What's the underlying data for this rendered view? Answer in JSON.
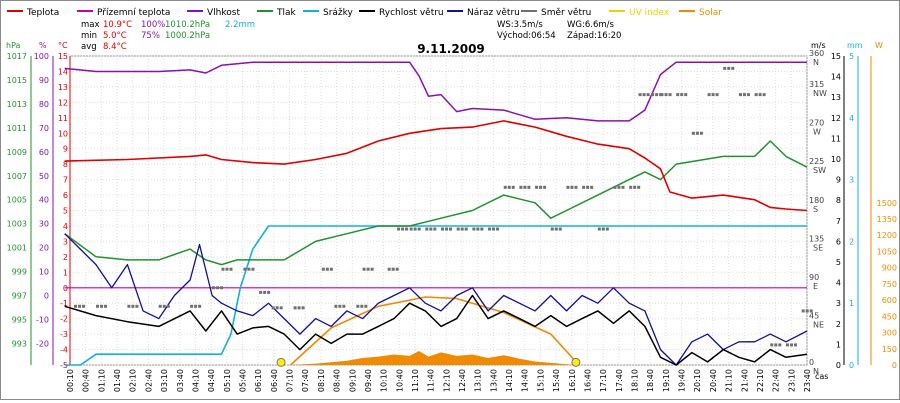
{
  "chart_data": {
    "type": "line",
    "title": "9.11.2009",
    "legend": [
      {
        "key": "teplota",
        "label": "Teplota",
        "color": "#e00000"
      },
      {
        "key": "rosny_bod",
        "label": "Přízemní teplota",
        "color": "#c000c0"
      },
      {
        "key": "vlhkost",
        "label": "Vlhkost",
        "color": "#8a10b0"
      },
      {
        "key": "tlak",
        "label": "Tlak",
        "color": "#20922e"
      },
      {
        "key": "srazky",
        "label": "Srážky",
        "color": "#12b0e0"
      },
      {
        "key": "rychlost",
        "label": "Rychlost větru",
        "color": "#000000"
      },
      {
        "key": "naraz",
        "label": "Náraz větru",
        "color": "#10109a"
      },
      {
        "key": "smer",
        "label": "Směr větru",
        "color": "#707070"
      },
      {
        "key": "uv",
        "label": "UV index",
        "color": "#f0d000"
      },
      {
        "key": "solar",
        "label": "Solar",
        "color": "#f08a00"
      }
    ],
    "stats": {
      "max_label": "max",
      "max_temp": "10.9°C",
      "max_hum": "100%",
      "max_press": "1010.2hPa",
      "rain": "2.2mm",
      "min_label": "min",
      "min_temp": "5.0°C",
      "min_hum": "75%",
      "min_press": "1000.2hPa",
      "avg_label": "avg",
      "avg_temp": "8.4°C"
    },
    "info": {
      "ws": "WS:3.5m/s",
      "wg": "WG:6.6m/s",
      "sunrise": "Východ:06:54",
      "sunset": "Západ:16:20"
    },
    "axis_units": {
      "hpa": "hPa",
      "pct": "%",
      "temp": "°C",
      "ms": "m/s",
      "mm": "mm",
      "w": "W",
      "cas": "čas"
    },
    "axes": {
      "hpa_ticks": [
        "1017",
        "1015",
        "1013",
        "1011",
        "1009",
        "1007",
        "1005",
        "1003",
        "1001",
        "999",
        "997",
        "995",
        "993"
      ],
      "pct_ticks": [
        "100",
        "90",
        "80",
        "70",
        "60",
        "50",
        "40",
        "30",
        "20",
        "10",
        "0",
        "-10",
        "-20"
      ],
      "temp_ticks": [
        "15",
        "14",
        "13",
        "12",
        "11",
        "10",
        "9",
        "8",
        "7",
        "6",
        "5",
        "4",
        "3",
        "2",
        "1",
        "0",
        "-1",
        "-2",
        "-3",
        "-4",
        "-5"
      ],
      "dir_ticks": [
        {
          "deg": "360",
          "dir": "N",
          "v": 15
        },
        {
          "deg": "315",
          "dir": "NW",
          "v": 13
        },
        {
          "deg": "270",
          "dir": "W",
          "v": 10.5
        },
        {
          "deg": "225",
          "dir": "SW",
          "v": 8
        },
        {
          "deg": "180",
          "dir": "S",
          "v": 5.5
        },
        {
          "deg": "135",
          "dir": "SE",
          "v": 3
        },
        {
          "deg": "90",
          "dir": "E",
          "v": 0.5
        },
        {
          "deg": "45",
          "dir": "NE",
          "v": -2
        },
        {
          "deg": "0",
          "dir": "N",
          "v": -5
        }
      ],
      "ms_ticks": [
        "15",
        "14",
        "13",
        "12",
        "11",
        "10",
        "9",
        "8",
        "7",
        "6",
        "5",
        "4",
        "3",
        "2",
        "1",
        "0"
      ],
      "mm_ticks": [
        "5",
        "4",
        "3",
        "2",
        "1",
        "0"
      ],
      "w_ticks": [
        "1500",
        "1350",
        "1200",
        "1050",
        "900",
        "750",
        "600",
        "450",
        "300",
        "150",
        "0"
      ],
      "time_ticks": [
        "00:10",
        "00:40",
        "01:10",
        "01:40",
        "02:10",
        "02:40",
        "03:10",
        "03:40",
        "04:10",
        "04:40",
        "05:10",
        "05:40",
        "06:10",
        "06:40",
        "07:10",
        "07:40",
        "08:10",
        "08:40",
        "09:10",
        "09:40",
        "10:10",
        "10:40",
        "11:10",
        "11:40",
        "12:10",
        "12:40",
        "13:10",
        "13:40",
        "14:10",
        "14:40",
        "15:10",
        "15:40",
        "16:10",
        "16:40",
        "17:10",
        "17:40",
        "18:10",
        "18:40",
        "19:10",
        "19:40",
        "20:10",
        "20:40",
        "21:10",
        "21:40",
        "22:10",
        "22:40",
        "23:10",
        "23:40"
      ]
    },
    "x_hours": [
      0.17,
      23.67
    ],
    "series": {
      "teplota": [
        [
          0,
          8.2
        ],
        [
          2,
          8.3
        ],
        [
          4,
          8.5
        ],
        [
          4.5,
          8.6
        ],
        [
          5,
          8.3
        ],
        [
          6,
          8.1
        ],
        [
          7,
          8.0
        ],
        [
          8,
          8.3
        ],
        [
          9,
          8.7
        ],
        [
          10,
          9.5
        ],
        [
          11,
          10.0
        ],
        [
          12,
          10.3
        ],
        [
          13,
          10.4
        ],
        [
          14,
          10.8
        ],
        [
          15,
          10.4
        ],
        [
          16,
          9.8
        ],
        [
          17,
          9.3
        ],
        [
          18,
          9.0
        ],
        [
          18.5,
          8.4
        ],
        [
          19,
          7.7
        ],
        [
          19.3,
          6.2
        ],
        [
          20,
          5.8
        ],
        [
          21,
          6.0
        ],
        [
          22,
          5.7
        ],
        [
          22.5,
          5.2
        ],
        [
          23,
          5.1
        ],
        [
          23.67,
          5.0
        ]
      ],
      "rosny_bod": [
        [
          0,
          0
        ],
        [
          23.67,
          0
        ]
      ],
      "vlhkost": [
        [
          0,
          14.2
        ],
        [
          1,
          14.0
        ],
        [
          2,
          14.0
        ],
        [
          3,
          14.0
        ],
        [
          4,
          14.1
        ],
        [
          4.5,
          13.9
        ],
        [
          5,
          14.4
        ],
        [
          6,
          14.6
        ],
        [
          10,
          14.6
        ],
        [
          11,
          14.6
        ],
        [
          11.3,
          13.7
        ],
        [
          11.6,
          12.4
        ],
        [
          12,
          12.5
        ],
        [
          12.5,
          11.4
        ],
        [
          13,
          11.6
        ],
        [
          14,
          11.5
        ],
        [
          15,
          10.9
        ],
        [
          16,
          11.0
        ],
        [
          17,
          10.8
        ],
        [
          18,
          10.8
        ],
        [
          18.5,
          11.5
        ],
        [
          19,
          13.8
        ],
        [
          19.5,
          14.6
        ],
        [
          23.67,
          14.6
        ]
      ],
      "tlak": [
        [
          0,
          3.5
        ],
        [
          1,
          2.0
        ],
        [
          2,
          1.8
        ],
        [
          3,
          1.8
        ],
        [
          4,
          2.5
        ],
        [
          4.5,
          1.8
        ],
        [
          5,
          1.5
        ],
        [
          5.5,
          1.8
        ],
        [
          7,
          1.8
        ],
        [
          8,
          3.0
        ],
        [
          9,
          3.5
        ],
        [
          10,
          4.0
        ],
        [
          11,
          4.0
        ],
        [
          12,
          4.5
        ],
        [
          13,
          5.0
        ],
        [
          14,
          6.0
        ],
        [
          15,
          5.5
        ],
        [
          15.5,
          4.5
        ],
        [
          16,
          5.0
        ],
        [
          17,
          6.0
        ],
        [
          18,
          7.0
        ],
        [
          18.5,
          7.5
        ],
        [
          19,
          7.0
        ],
        [
          19.5,
          8.0
        ],
        [
          21,
          8.5
        ],
        [
          22,
          8.5
        ],
        [
          22.5,
          9.5
        ],
        [
          23,
          8.5
        ],
        [
          23.67,
          7.8
        ]
      ],
      "srazky": [
        [
          0,
          -5
        ],
        [
          0.5,
          -5
        ],
        [
          1,
          -4.3
        ],
        [
          2,
          -4.3
        ],
        [
          3,
          -4.3
        ],
        [
          4,
          -4.3
        ],
        [
          5,
          -4.3
        ],
        [
          5.3,
          -3.0
        ],
        [
          5.6,
          0.0
        ],
        [
          6,
          2.5
        ],
        [
          6.5,
          4.0
        ],
        [
          7,
          4.0
        ],
        [
          8,
          4.0
        ],
        [
          12,
          4.0
        ],
        [
          23.67,
          4.0
        ]
      ],
      "rychlost": [
        [
          0,
          -1.2
        ],
        [
          1,
          -1.8
        ],
        [
          2,
          -2.2
        ],
        [
          3,
          -2.5
        ],
        [
          4,
          -1.5
        ],
        [
          4.5,
          -2.8
        ],
        [
          5,
          -1.5
        ],
        [
          5.5,
          -3.0
        ],
        [
          6,
          -2.6
        ],
        [
          6.5,
          -2.5
        ],
        [
          7,
          -3.0
        ],
        [
          7.5,
          -4.0
        ],
        [
          8,
          -3.0
        ],
        [
          8.5,
          -3.6
        ],
        [
          9,
          -3.0
        ],
        [
          9.5,
          -3.0
        ],
        [
          10,
          -2.5
        ],
        [
          10.5,
          -2.0
        ],
        [
          11,
          -1.0
        ],
        [
          11.5,
          -1.5
        ],
        [
          12,
          -2.5
        ],
        [
          12.5,
          -2.0
        ],
        [
          13,
          -0.5
        ],
        [
          13.5,
          -2.0
        ],
        [
          14,
          -1.5
        ],
        [
          14.5,
          -2.0
        ],
        [
          15,
          -2.5
        ],
        [
          15.5,
          -1.8
        ],
        [
          16,
          -2.5
        ],
        [
          16.5,
          -2.0
        ],
        [
          17,
          -1.5
        ],
        [
          17.5,
          -2.3
        ],
        [
          18,
          -1.5
        ],
        [
          18.5,
          -2.5
        ],
        [
          19,
          -4.5
        ],
        [
          19.5,
          -5.0
        ],
        [
          20,
          -4.2
        ],
        [
          20.5,
          -4.8
        ],
        [
          21,
          -4.0
        ],
        [
          21.5,
          -4.5
        ],
        [
          22,
          -4.8
        ],
        [
          22.5,
          -4.0
        ],
        [
          23,
          -4.5
        ],
        [
          23.67,
          -4.3
        ]
      ],
      "naraz": [
        [
          0,
          3.5
        ],
        [
          0.5,
          2.5
        ],
        [
          1,
          1.5
        ],
        [
          1.5,
          0
        ],
        [
          2,
          1.5
        ],
        [
          2.5,
          -1.5
        ],
        [
          3,
          -2.0
        ],
        [
          3.5,
          -0.5
        ],
        [
          4,
          0.5
        ],
        [
          4.3,
          2.8
        ],
        [
          4.7,
          -0.5
        ],
        [
          5,
          -1.0
        ],
        [
          5.5,
          -1.5
        ],
        [
          6,
          -1.8
        ],
        [
          6.5,
          -1.0
        ],
        [
          7,
          -2.0
        ],
        [
          7.5,
          -3.0
        ],
        [
          8,
          -2.0
        ],
        [
          8.5,
          -2.5
        ],
        [
          9,
          -1.5
        ],
        [
          9.5,
          -2.0
        ],
        [
          10,
          -1.0
        ],
        [
          10.5,
          -0.5
        ],
        [
          11,
          0
        ],
        [
          11.5,
          -1.0
        ],
        [
          12,
          -1.5
        ],
        [
          12.5,
          -0.5
        ],
        [
          13,
          0
        ],
        [
          13.5,
          -1.5
        ],
        [
          14,
          -0.5
        ],
        [
          14.5,
          -1.0
        ],
        [
          15,
          -1.5
        ],
        [
          15.5,
          -0.5
        ],
        [
          16,
          -1.5
        ],
        [
          16.5,
          -0.5
        ],
        [
          17,
          -1.0
        ],
        [
          17.5,
          0
        ],
        [
          18,
          -1.0
        ],
        [
          18.5,
          -1.5
        ],
        [
          19,
          -4.0
        ],
        [
          19.5,
          -5.0
        ],
        [
          20,
          -3.5
        ],
        [
          20.5,
          -3.0
        ],
        [
          21,
          -4.0
        ],
        [
          21.5,
          -3.5
        ],
        [
          22,
          -3.5
        ],
        [
          22.5,
          -3.0
        ],
        [
          23,
          -3.5
        ],
        [
          23.67,
          -2.8
        ]
      ],
      "smer_pts": [
        [
          0.3,
          -1.2
        ],
        [
          1,
          -1.2
        ],
        [
          2,
          -1.2
        ],
        [
          3,
          -1.2
        ],
        [
          4,
          -1.2
        ],
        [
          4.7,
          0
        ],
        [
          5,
          1.2
        ],
        [
          5.7,
          1.2
        ],
        [
          6.2,
          -0.3
        ],
        [
          6.6,
          -1.3
        ],
        [
          7.3,
          -1.3
        ],
        [
          8.2,
          1.2
        ],
        [
          8.6,
          -1.2
        ],
        [
          9.3,
          -1.2
        ],
        [
          9.5,
          1.2
        ],
        [
          10.3,
          1.2
        ],
        [
          10.6,
          3.8
        ],
        [
          11,
          3.8
        ],
        [
          11.5,
          3.8
        ],
        [
          12,
          3.8
        ],
        [
          12.5,
          3.8
        ],
        [
          13,
          3.8
        ],
        [
          13.5,
          3.8
        ],
        [
          14,
          6.5
        ],
        [
          14.5,
          6.5
        ],
        [
          15,
          6.5
        ],
        [
          15.5,
          3.8
        ],
        [
          16,
          6.5
        ],
        [
          16.5,
          6.5
        ],
        [
          17,
          3.8
        ],
        [
          17.5,
          6.5
        ],
        [
          18,
          6.5
        ],
        [
          18.3,
          12.5
        ],
        [
          18.7,
          12.5
        ],
        [
          19,
          12.5
        ],
        [
          19.5,
          12.5
        ],
        [
          20,
          10.0
        ],
        [
          20.5,
          12.5
        ],
        [
          21,
          14.2
        ],
        [
          21.5,
          12.5
        ],
        [
          22,
          12.5
        ],
        [
          22.5,
          -3.7
        ],
        [
          23,
          -3.7
        ],
        [
          23.5,
          -1.5
        ]
      ],
      "solar": [
        [
          7.2,
          0
        ],
        [
          8,
          0.02
        ],
        [
          9,
          0.06
        ],
        [
          9.5,
          0.1
        ],
        [
          10,
          0.12
        ],
        [
          10.5,
          0.15
        ],
        [
          11,
          0.13
        ],
        [
          11.3,
          0.2
        ],
        [
          11.6,
          0.12
        ],
        [
          12,
          0.18
        ],
        [
          12.5,
          0.13
        ],
        [
          13,
          0.15
        ],
        [
          13.5,
          0.1
        ],
        [
          14,
          0.14
        ],
        [
          14.5,
          0.09
        ],
        [
          15,
          0.05
        ],
        [
          15.5,
          0.03
        ],
        [
          16,
          0.01
        ],
        [
          16.4,
          0
        ]
      ],
      "solar_curve": [
        [
          7.2,
          -5
        ],
        [
          8.5,
          -2.6
        ],
        [
          10,
          -1.2
        ],
        [
          11.5,
          -0.6
        ],
        [
          12.5,
          -0.7
        ],
        [
          14,
          -1.6
        ],
        [
          15.5,
          -3.0
        ],
        [
          16.4,
          -5
        ]
      ],
      "uv_points": [
        [
          6.9,
          -4.7
        ],
        [
          16.3,
          -4.7
        ]
      ]
    }
  }
}
